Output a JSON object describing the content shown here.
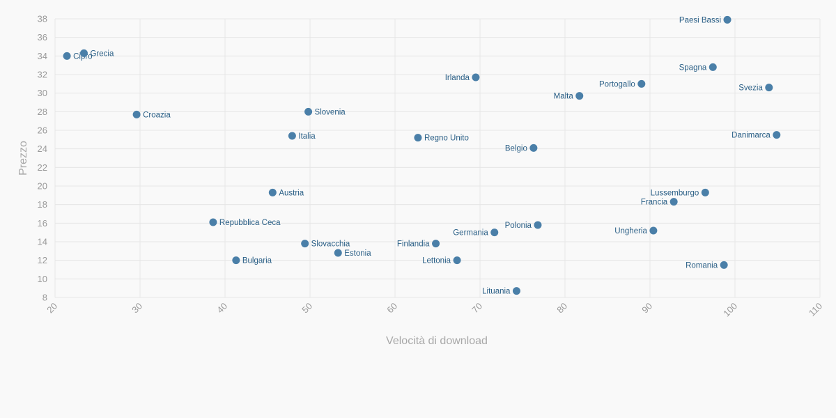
{
  "chart_data": {
    "type": "scatter",
    "xlabel": "Velocità di download",
    "ylabel": "Prezzo",
    "xlim": [
      20,
      110
    ],
    "ylim": [
      8,
      38
    ],
    "x_ticks": [
      20,
      30,
      40,
      50,
      60,
      70,
      80,
      90,
      100,
      110
    ],
    "y_ticks": [
      8,
      10,
      12,
      14,
      16,
      18,
      20,
      22,
      24,
      26,
      28,
      30,
      32,
      34,
      36,
      38
    ],
    "grid": true,
    "point_color": "#4a7fa8",
    "label_color": "#2a5f86",
    "points": [
      {
        "label": "Paesi Bassi",
        "x": 99.1,
        "y": 37.9,
        "side": "left"
      },
      {
        "label": "Cipro",
        "x": 21.4,
        "y": 34.0,
        "side": "right"
      },
      {
        "label": "Grecia",
        "x": 23.4,
        "y": 34.3,
        "side": "right"
      },
      {
        "label": "Spagna",
        "x": 97.4,
        "y": 32.8,
        "side": "left"
      },
      {
        "label": "Irlanda",
        "x": 69.5,
        "y": 31.7,
        "side": "left"
      },
      {
        "label": "Portogallo",
        "x": 89.0,
        "y": 31.0,
        "side": "left"
      },
      {
        "label": "Svezia",
        "x": 104.0,
        "y": 30.6,
        "side": "left"
      },
      {
        "label": "Malta",
        "x": 81.7,
        "y": 29.7,
        "side": "left"
      },
      {
        "label": "Croazia",
        "x": 29.6,
        "y": 27.7,
        "side": "right"
      },
      {
        "label": "Slovenia",
        "x": 49.8,
        "y": 28.0,
        "side": "right"
      },
      {
        "label": "Italia",
        "x": 47.9,
        "y": 25.4,
        "side": "right"
      },
      {
        "label": "Regno Unito",
        "x": 62.7,
        "y": 25.2,
        "side": "right"
      },
      {
        "label": "Belgio",
        "x": 76.3,
        "y": 24.1,
        "side": "left"
      },
      {
        "label": "Danimarca",
        "x": 104.9,
        "y": 25.5,
        "side": "left"
      },
      {
        "label": "Austria",
        "x": 45.6,
        "y": 19.3,
        "side": "right"
      },
      {
        "label": "Lussemburgo",
        "x": 96.5,
        "y": 19.3,
        "side": "left"
      },
      {
        "label": "Francia",
        "x": 92.8,
        "y": 18.3,
        "side": "left"
      },
      {
        "label": "Repubblica Ceca",
        "x": 38.6,
        "y": 16.1,
        "side": "right"
      },
      {
        "label": "Polonia",
        "x": 76.8,
        "y": 15.8,
        "side": "left"
      },
      {
        "label": "Germania",
        "x": 71.7,
        "y": 15.0,
        "side": "left"
      },
      {
        "label": "Ungheria",
        "x": 90.4,
        "y": 15.2,
        "side": "left"
      },
      {
        "label": "Slovacchia",
        "x": 49.4,
        "y": 13.8,
        "side": "right"
      },
      {
        "label": "Finlandia",
        "x": 64.8,
        "y": 13.8,
        "side": "left"
      },
      {
        "label": "Estonia",
        "x": 53.3,
        "y": 12.8,
        "side": "right"
      },
      {
        "label": "Bulgaria",
        "x": 41.3,
        "y": 12.0,
        "side": "right"
      },
      {
        "label": "Lettonia",
        "x": 67.3,
        "y": 12.0,
        "side": "left"
      },
      {
        "label": "Romania",
        "x": 98.7,
        "y": 11.5,
        "side": "left"
      },
      {
        "label": "Lituania",
        "x": 74.3,
        "y": 8.7,
        "side": "left"
      }
    ]
  }
}
